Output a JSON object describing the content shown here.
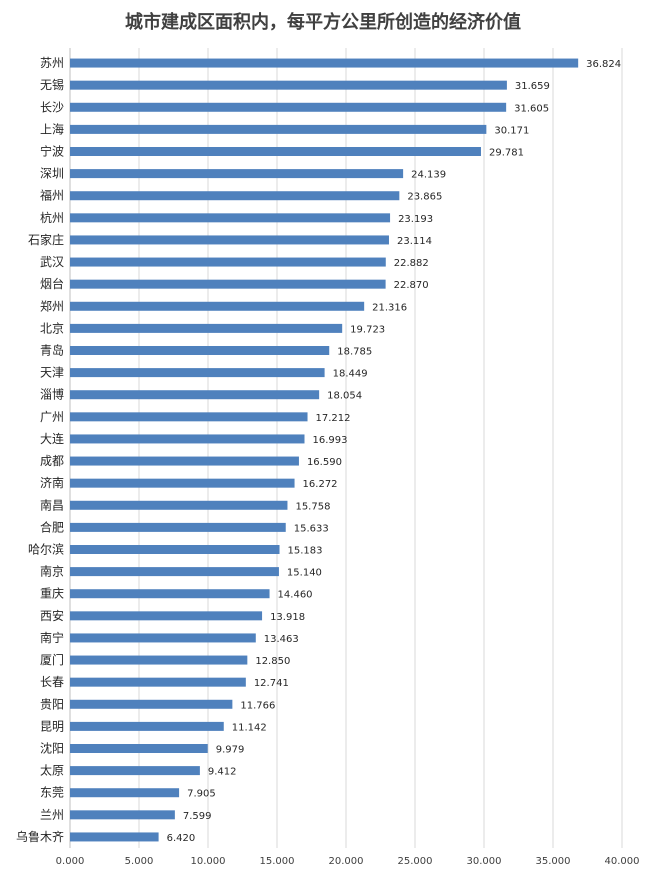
{
  "chart_data": {
    "type": "bar",
    "orientation": "horizontal",
    "title": "城市建成区面积内，每平方公里所创造的经济价值",
    "xlabel": "",
    "ylabel": "",
    "xlim": [
      0,
      40
    ],
    "x_ticks": [
      "0.000",
      "5.000",
      "10.000",
      "15.000",
      "20.000",
      "25.000",
      "30.000",
      "35.000",
      "40.000"
    ],
    "grid": "vertical",
    "bar_color": "#4f81bd",
    "categories": [
      "苏州",
      "无锡",
      "长沙",
      "上海",
      "宁波",
      "深圳",
      "福州",
      "杭州",
      "石家庄",
      "武汉",
      "烟台",
      "郑州",
      "北京",
      "青岛",
      "天津",
      "淄博",
      "广州",
      "大连",
      "成都",
      "济南",
      "南昌",
      "合肥",
      "哈尔滨",
      "南京",
      "重庆",
      "西安",
      "南宁",
      "厦门",
      "长春",
      "贵阳",
      "昆明",
      "沈阳",
      "太原",
      "东莞",
      "兰州",
      "乌鲁木齐"
    ],
    "values": [
      36.824,
      31.659,
      31.605,
      30.171,
      29.781,
      24.139,
      23.865,
      23.193,
      23.114,
      22.882,
      22.87,
      21.316,
      19.723,
      18.785,
      18.449,
      18.054,
      17.212,
      16.993,
      16.59,
      16.272,
      15.758,
      15.633,
      15.183,
      15.14,
      14.46,
      13.918,
      13.463,
      12.85,
      12.741,
      11.766,
      11.142,
      9.979,
      9.412,
      7.905,
      7.599,
      6.42
    ],
    "value_labels": [
      "36.824",
      "31.659",
      "31.605",
      "30.171",
      "29.781",
      "24.139",
      "23.865",
      "23.193",
      "23.114",
      "22.882",
      "22.870",
      "21.316",
      "19.723",
      "18.785",
      "18.449",
      "18.054",
      "17.212",
      "16.993",
      "16.590",
      "16.272",
      "15.758",
      "15.633",
      "15.183",
      "15.140",
      "14.460",
      "13.918",
      "13.463",
      "12.850",
      "12.741",
      "11.766",
      "11.142",
      "9.979",
      "9.412",
      "7.905",
      "7.599",
      "6.420"
    ]
  }
}
